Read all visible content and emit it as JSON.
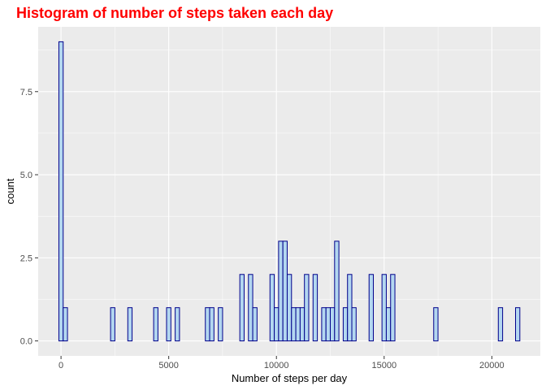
{
  "chart_data": {
    "type": "bar",
    "title": "Histogram of number of steps taken each day",
    "xlabel": "Number of steps per day",
    "ylabel": "count",
    "xlim": [
      -1060,
      22250
    ],
    "ylim": [
      -0.45,
      9.45
    ],
    "x_ticks": [
      0,
      5000,
      10000,
      15000,
      20000
    ],
    "x_tick_labels": [
      "0",
      "5000",
      "10000",
      "15000",
      "20000"
    ],
    "y_ticks": [
      0,
      2.5,
      5.0,
      7.5
    ],
    "y_tick_labels": [
      "0.0",
      "2.5",
      "5.0",
      "7.5"
    ],
    "bin_width": 200,
    "bins": [
      {
        "x": 0,
        "count": 9
      },
      {
        "x": 200,
        "count": 1
      },
      {
        "x": 2400,
        "count": 1
      },
      {
        "x": 3200,
        "count": 1
      },
      {
        "x": 4400,
        "count": 1
      },
      {
        "x": 5000,
        "count": 1
      },
      {
        "x": 5400,
        "count": 1
      },
      {
        "x": 6800,
        "count": 1
      },
      {
        "x": 7000,
        "count": 1
      },
      {
        "x": 7400,
        "count": 1
      },
      {
        "x": 8400,
        "count": 2
      },
      {
        "x": 8800,
        "count": 2
      },
      {
        "x": 9000,
        "count": 1
      },
      {
        "x": 9800,
        "count": 2
      },
      {
        "x": 10000,
        "count": 1
      },
      {
        "x": 10200,
        "count": 3
      },
      {
        "x": 10400,
        "count": 3
      },
      {
        "x": 10600,
        "count": 2
      },
      {
        "x": 10800,
        "count": 1
      },
      {
        "x": 11000,
        "count": 1
      },
      {
        "x": 11200,
        "count": 1
      },
      {
        "x": 11400,
        "count": 2
      },
      {
        "x": 11800,
        "count": 2
      },
      {
        "x": 12200,
        "count": 1
      },
      {
        "x": 12400,
        "count": 1
      },
      {
        "x": 12600,
        "count": 1
      },
      {
        "x": 12800,
        "count": 3
      },
      {
        "x": 13200,
        "count": 1
      },
      {
        "x": 13400,
        "count": 2
      },
      {
        "x": 13600,
        "count": 1
      },
      {
        "x": 14400,
        "count": 2
      },
      {
        "x": 15000,
        "count": 2
      },
      {
        "x": 15200,
        "count": 1
      },
      {
        "x": 15400,
        "count": 2
      },
      {
        "x": 17400,
        "count": 1
      },
      {
        "x": 20400,
        "count": 1
      },
      {
        "x": 21200,
        "count": 1
      }
    ],
    "grid": true,
    "colors": {
      "bar_fill": "#b3d7f0",
      "bar_outline": "#00008b",
      "panel_background": "#ebebeb",
      "grid_major": "#ffffff",
      "title": "#ff0000"
    }
  }
}
